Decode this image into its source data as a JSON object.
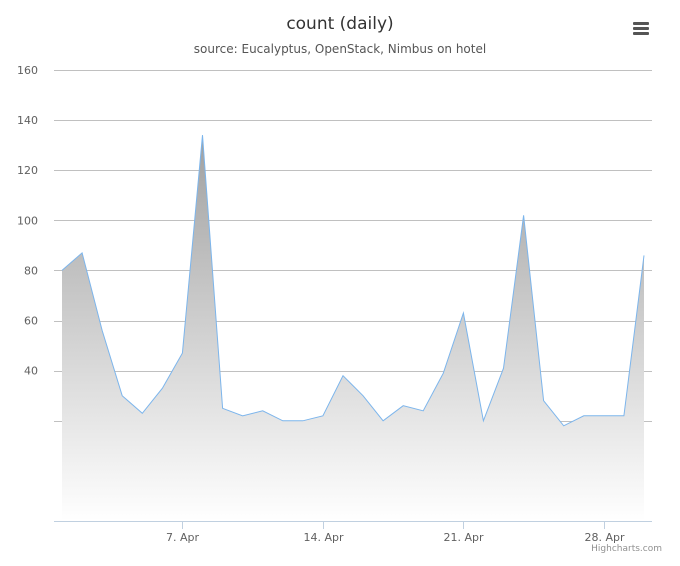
{
  "chart_data": {
    "type": "area",
    "title": "count (daily)",
    "subtitle": "source: Eucalyptus, OpenStack, Nimbus on hotel",
    "xlabel": "",
    "ylabel": "",
    "ylim": [
      -20,
      160
    ],
    "yticks": [
      40,
      60,
      80,
      100,
      120,
      140,
      160
    ],
    "xticks": [
      {
        "day": 7,
        "label": "7. Apr"
      },
      {
        "day": 14,
        "label": "14. Apr"
      },
      {
        "day": 21,
        "label": "21. Apr"
      },
      {
        "day": 28,
        "label": "28. Apr"
      }
    ],
    "x": [
      1,
      2,
      3,
      4,
      5,
      6,
      7,
      8,
      9,
      10,
      11,
      12,
      13,
      14,
      15,
      16,
      17,
      18,
      19,
      20,
      21,
      22,
      23,
      24,
      25,
      26,
      27,
      28,
      29,
      30
    ],
    "series": [
      {
        "values": [
          80,
          87,
          56,
          30,
          23,
          33,
          47,
          134,
          25,
          22,
          24,
          20,
          20,
          22,
          38,
          30,
          20,
          26,
          24,
          39,
          63,
          20,
          41,
          102,
          28,
          18,
          22,
          22,
          22,
          86
        ]
      }
    ],
    "grid": true,
    "legend": "none",
    "colors": {
      "line": "#7cb5ec",
      "fill_top": "#a0a0a0",
      "fill_bottom": "#ffffff",
      "grid": "#c0c0c0"
    }
  },
  "ui": {
    "menu_icon": "hamburger-icon",
    "credits": "Highcharts.com"
  }
}
